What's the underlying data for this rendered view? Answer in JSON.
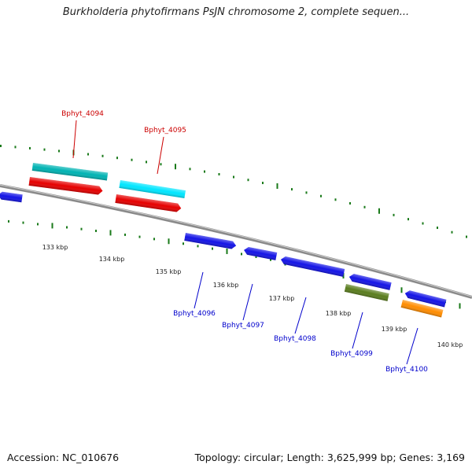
{
  "title": "Burkholderia phytofirmans PsJN chromosome 2, complete sequen...",
  "footer": {
    "accession": "Accession: NC_010676",
    "summary": "Topology: circular; Length: 3,625,999 bp; Genes: 3,169"
  },
  "colors": {
    "backbone": "#8a8a8a",
    "tick_marks": "#1a7a1a",
    "upper_label": "#cc0000",
    "lower_label": "#0000cc"
  },
  "ticks": [
    "133 kbp",
    "134 kbp",
    "135 kbp",
    "136 kbp",
    "137 kbp",
    "138 kbp",
    "139 kbp",
    "140 kbp"
  ],
  "genes": [
    {
      "label": "Bphyt_4094",
      "color": "#00b3b3"
    },
    {
      "label": "Bphyt_4095",
      "color": "#00e6ff"
    },
    {
      "label": "Bphyt_4096",
      "color": "#1414e6"
    },
    {
      "label": "Bphyt_4097",
      "color": "#1414e6"
    },
    {
      "label": "Bphyt_4098",
      "color": "#1414e6"
    },
    {
      "label": "Bphyt_4099",
      "color": "#5a7d1e"
    },
    {
      "label": "Bphyt_4100",
      "color": "#ff8c00"
    }
  ],
  "features": [
    {
      "color": "#e60000",
      "strand": "forward"
    },
    {
      "color": "#e60000",
      "strand": "forward"
    },
    {
      "color": "#1414e6",
      "strand": "forward"
    },
    {
      "color": "#1414e6",
      "strand": "reverse"
    },
    {
      "color": "#1414e6",
      "strand": "reverse"
    },
    {
      "color": "#1414e6",
      "strand": "reverse"
    },
    {
      "color": "#1414e6",
      "strand": "reverse"
    },
    {
      "color": "#1414e6",
      "strand": "reverse"
    }
  ]
}
